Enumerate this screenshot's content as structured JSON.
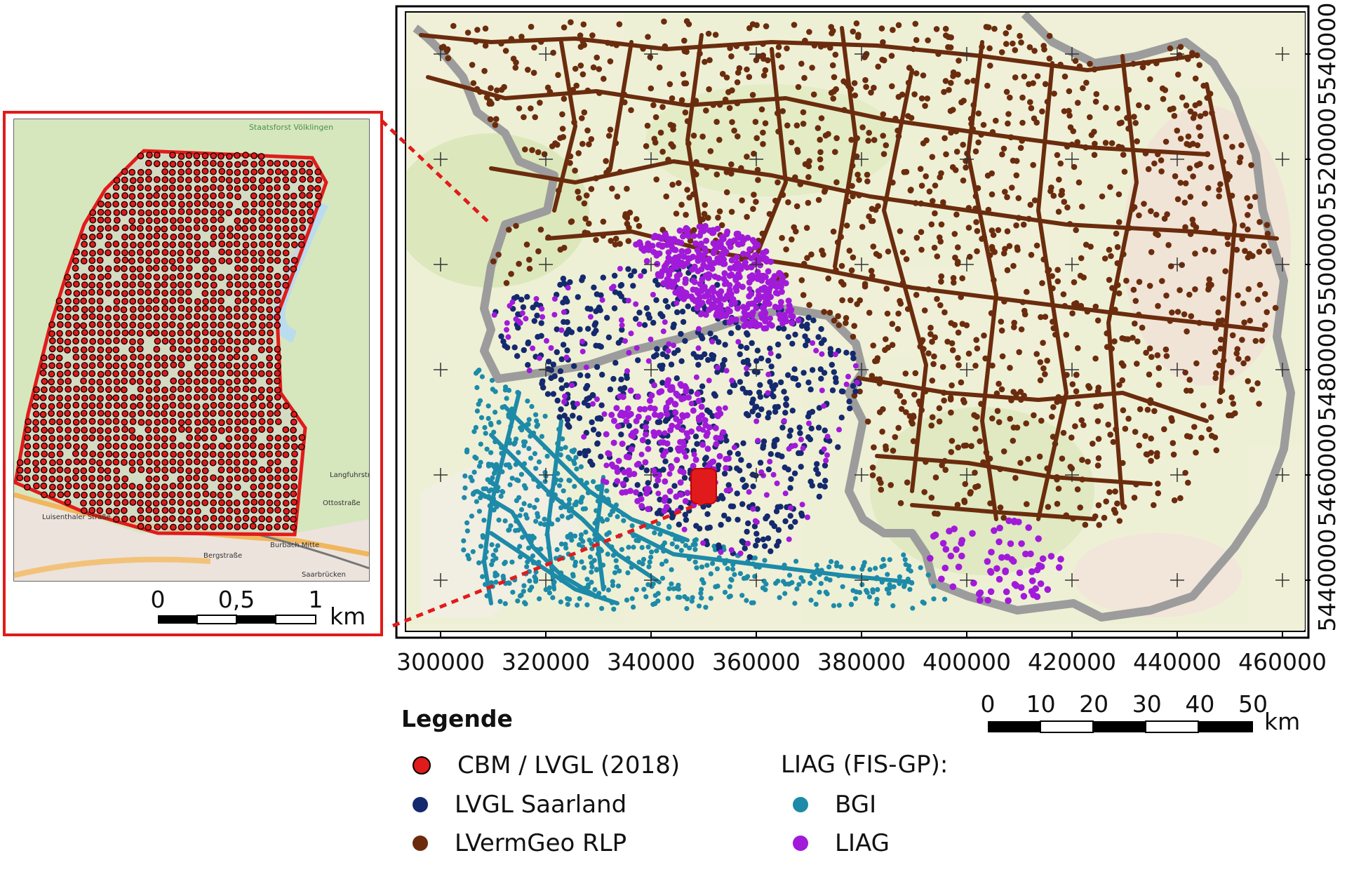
{
  "main_map": {
    "x_ticks": [
      "300000",
      "320000",
      "340000",
      "360000",
      "380000",
      "400000",
      "420000",
      "440000",
      "460000"
    ],
    "y_ticks": [
      "5540000",
      "5520000",
      "5500000",
      "5480000",
      "5460000",
      "5440000"
    ],
    "scale_labels": [
      "0",
      "10",
      "20",
      "30",
      "40",
      "50"
    ],
    "scale_unit": "km"
  },
  "inset_map": {
    "scale_labels": [
      "0",
      "0,5",
      "1"
    ],
    "scale_unit": "km",
    "place_labels": [
      "Staatsforst Völklingen",
      "Luisenthaler Straße",
      "Burbach Mitte",
      "Bergstraße",
      "Langfuhrstr.",
      "Ottostraße",
      "Saarbrücken"
    ]
  },
  "legend": {
    "title": "Legende",
    "items": [
      {
        "label": "CBM / LVGL (2018)",
        "color": "#e11b1b"
      },
      {
        "label": "LVGL Saarland",
        "color": "#14296e"
      },
      {
        "label": "LVermGeo RLP",
        "color": "#6b2c0e"
      }
    ],
    "group_title": "LIAG (FIS-GP):",
    "group_items": [
      {
        "label": "BGI",
        "color": "#1d8aa8"
      },
      {
        "label": "LIAG",
        "color": "#a11ad9"
      }
    ]
  },
  "colors": {
    "inset_border": "#e11b1b",
    "state_border": "#9e9e9e",
    "map_base": "#e9efcf",
    "rlp": "#6b2c0e",
    "saarland": "#14296e",
    "bgi": "#1d8aa8",
    "liag": "#a11ad9",
    "cbm": "#e11b1b"
  }
}
